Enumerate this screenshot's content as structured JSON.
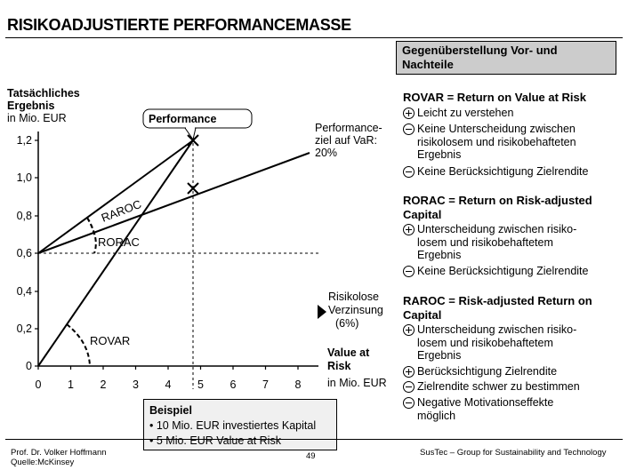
{
  "page": {
    "title": "RISIKOADJUSTIERTE PERFORMANCEMASSE"
  },
  "diagram": {
    "y_axis_label": [
      "Tatsächliches",
      "Ergebnis",
      "in Mio. EUR"
    ],
    "x_axis_label": [
      "Value at",
      "Risk",
      "in Mio. EUR"
    ],
    "y_ticks": [
      "1,2",
      "1,0",
      "0,8",
      "0,6",
      "0,4",
      "0,2",
      "0"
    ],
    "x_ticks": [
      "0",
      "1",
      "2",
      "3",
      "4",
      "5",
      "6",
      "7",
      "8"
    ],
    "performance_box_label": "Performance",
    "performance_target_label": [
      "Performance-",
      "ziel auf VaR:",
      "20%"
    ],
    "riskfree_label": [
      "Risikolose",
      "Verzinsung",
      "(6%)"
    ],
    "raroc_label": "RAROC",
    "rorac_label": "RORAC",
    "rovar_label": "ROVAR"
  },
  "example": {
    "title": "Beispiel",
    "bullets": [
      "10 Mio. EUR investiertes Kapital",
      "5 Mio. EUR Value at Risk"
    ]
  },
  "panel": {
    "header": [
      "Gegenüberstellung Vor- und",
      "Nachteile"
    ],
    "sections": [
      {
        "title": [
          "ROVAR = Return on Value at Risk"
        ],
        "items": [
          {
            "sign": "plus",
            "lines": [
              "Leicht zu verstehen"
            ]
          },
          {
            "sign": "minus",
            "lines": [
              "Keine Unterscheidung zwischen",
              "risikolosem und risikobehafteten",
              "Ergebnis"
            ]
          },
          {
            "sign": "minus",
            "lines": [
              "Keine Berücksichtigung Zielrendite"
            ]
          }
        ]
      },
      {
        "title": [
          "RORAC = Return on Risk-adjusted",
          "Capital"
        ],
        "items": [
          {
            "sign": "plus",
            "lines": [
              "Unterscheidung zwischen risiko-",
              "losem und risikobehaftetem",
              "Ergebnis"
            ]
          },
          {
            "sign": "minus",
            "lines": [
              "Keine Berücksichtigung Zielrendite"
            ]
          }
        ]
      },
      {
        "title": [
          "RAROC = Risk-adjusted Return on",
          "Capital"
        ],
        "items": [
          {
            "sign": "plus",
            "lines": [
              "Unterscheidung zwischen risiko-",
              "losem und risikobehaftetem",
              "Ergebnis"
            ]
          },
          {
            "sign": "plus",
            "lines": [
              "Berücksichtigung Zielrendite"
            ]
          },
          {
            "sign": "minus",
            "lines": [
              "Zielrendite schwer zu bestimmen"
            ]
          },
          {
            "sign": "minus",
            "lines": [
              "Negative Motivationseffekte",
              "möglich"
            ]
          }
        ]
      }
    ]
  },
  "footer": {
    "author": "Prof. Dr. Volker Hoffmann",
    "source": "Quelle:McKinsey",
    "page_number": "49",
    "org": "SusTec – Group for Sustainability and Technology"
  }
}
